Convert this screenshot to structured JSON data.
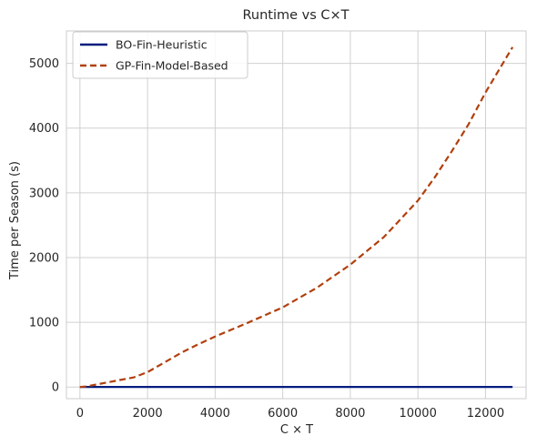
{
  "chart_data": {
    "type": "line",
    "title": "Runtime vs C×T",
    "xlabel": "C × T",
    "ylabel": "Time per Season (s)",
    "xlim": [
      -400,
      13200
    ],
    "ylim": [
      -180,
      5500
    ],
    "xticks": [
      0,
      2000,
      4000,
      6000,
      8000,
      10000,
      12000
    ],
    "yticks": [
      0,
      1000,
      2000,
      3000,
      4000,
      5000
    ],
    "grid": true,
    "legend_position": "top-left",
    "series": [
      {
        "name": "BO-Fin-Heuristic",
        "color": "#001c7f",
        "style": "solid",
        "x": [
          0,
          200,
          400,
          800,
          1200,
          1600,
          2000,
          3000,
          4000,
          5000,
          6000,
          7000,
          8000,
          9000,
          10000,
          11000,
          12000,
          12800
        ],
        "y": [
          1,
          1,
          1,
          1,
          1,
          1,
          1,
          1,
          1,
          1,
          1,
          1,
          1,
          1,
          1,
          1,
          1,
          1
        ]
      },
      {
        "name": "GP-Fin-Model-Based",
        "color": "#b1400d",
        "style": "dashed",
        "x": [
          0,
          200,
          400,
          800,
          1200,
          1600,
          2000,
          2500,
          3000,
          3500,
          4000,
          5000,
          6000,
          7000,
          8000,
          9000,
          10000,
          10500,
          11000,
          11500,
          12000,
          12400,
          12800
        ],
        "y": [
          0,
          10,
          30,
          70,
          110,
          150,
          230,
          380,
          530,
          660,
          780,
          1000,
          1230,
          1530,
          1890,
          2320,
          2880,
          3240,
          3640,
          4060,
          4550,
          4900,
          5250
        ]
      }
    ]
  }
}
